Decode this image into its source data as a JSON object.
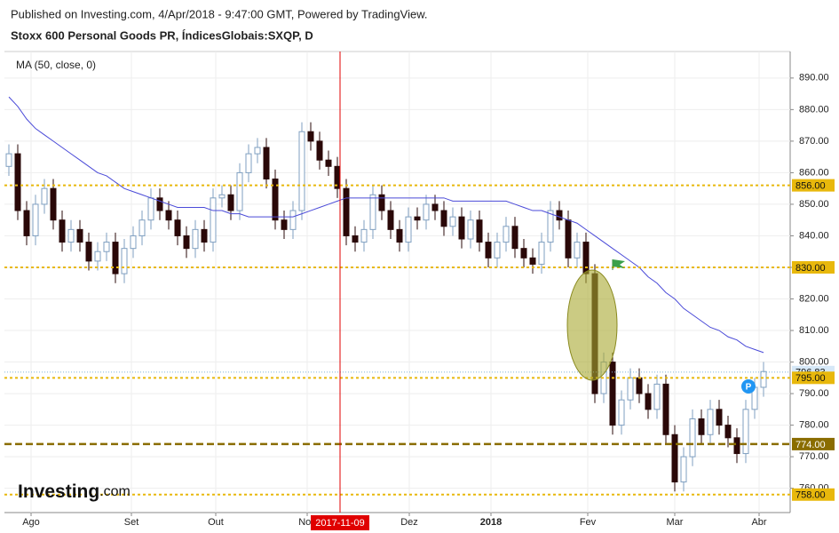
{
  "header": {
    "published": "Published on Investing.com, 4/Apr/2018 - 9:47:00 GMT, Powered by TradingView.",
    "symbol": "Stoxx 600 Personal Goods PR, ÍndicesGlobais:SXQP, D",
    "indicator": "MA (50, close, 0)"
  },
  "logo": {
    "brand": "Investing",
    "suffix": ".com"
  },
  "chart_data": {
    "type": "candlestick",
    "up_color": "#ffffff",
    "up_stroke": "#7f9fc0",
    "down_color": "#2a0808",
    "ma_color": "#4a4ad8",
    "open": [
      862,
      866,
      848,
      840,
      850,
      855,
      845,
      838,
      842,
      838,
      832,
      835,
      838,
      828,
      836,
      840,
      845,
      852,
      848,
      845,
      840,
      836,
      842,
      838,
      852,
      853,
      848,
      860,
      866,
      868,
      858,
      845,
      842,
      848,
      873,
      870,
      864,
      862,
      855,
      840,
      838,
      842,
      853,
      848,
      842,
      838,
      846,
      845,
      850,
      848,
      843,
      846,
      839,
      845,
      838,
      833,
      838,
      843,
      836,
      833,
      831,
      838,
      848,
      845,
      833,
      838,
      828,
      790,
      800,
      780,
      788,
      795,
      790,
      785,
      793,
      777,
      762,
      770,
      782,
      777,
      785,
      780,
      776,
      771,
      785,
      792
    ],
    "high": [
      869,
      869,
      851,
      853,
      858,
      858,
      848,
      845,
      845,
      841,
      838,
      841,
      841,
      839,
      843,
      848,
      855,
      855,
      851,
      848,
      843,
      845,
      845,
      855,
      856,
      856,
      863,
      869,
      871,
      871,
      861,
      848,
      851,
      876,
      876,
      873,
      867,
      865,
      858,
      843,
      845,
      856,
      856,
      851,
      845,
      849,
      849,
      853,
      853,
      851,
      849,
      849,
      848,
      848,
      841,
      841,
      846,
      846,
      839,
      836,
      841,
      851,
      851,
      848,
      841,
      841,
      831,
      803,
      803,
      791,
      798,
      798,
      793,
      796,
      796,
      780,
      773,
      785,
      785,
      788,
      788,
      783,
      779,
      788,
      795,
      800
    ],
    "low": [
      859,
      845,
      837,
      837,
      847,
      842,
      835,
      835,
      835,
      829,
      829,
      832,
      825,
      825,
      833,
      837,
      842,
      845,
      842,
      837,
      833,
      833,
      835,
      835,
      849,
      845,
      845,
      857,
      863,
      855,
      842,
      839,
      839,
      845,
      867,
      861,
      859,
      852,
      837,
      835,
      835,
      839,
      845,
      839,
      835,
      835,
      842,
      842,
      845,
      840,
      840,
      836,
      836,
      835,
      830,
      830,
      835,
      833,
      830,
      828,
      828,
      835,
      842,
      830,
      830,
      825,
      787,
      787,
      777,
      777,
      785,
      787,
      782,
      782,
      774,
      759,
      759,
      767,
      774,
      774,
      777,
      773,
      768,
      768,
      782,
      789
    ],
    "close": [
      866,
      848,
      840,
      850,
      855,
      845,
      838,
      842,
      838,
      832,
      835,
      838,
      828,
      836,
      840,
      845,
      852,
      848,
      845,
      840,
      836,
      842,
      838,
      852,
      853,
      848,
      860,
      866,
      868,
      858,
      845,
      842,
      848,
      873,
      870,
      864,
      862,
      855,
      840,
      838,
      842,
      853,
      848,
      842,
      838,
      846,
      845,
      850,
      848,
      843,
      846,
      839,
      845,
      838,
      833,
      838,
      843,
      836,
      833,
      831,
      838,
      848,
      845,
      833,
      838,
      828,
      790,
      800,
      780,
      788,
      795,
      790,
      785,
      793,
      777,
      762,
      770,
      782,
      777,
      785,
      780,
      776,
      771,
      785,
      792,
      797
    ],
    "ma": [
      884,
      881,
      877,
      874,
      872,
      870,
      868,
      866,
      864,
      862,
      860,
      859,
      857,
      855,
      854,
      853,
      852,
      851,
      850,
      849,
      849,
      849,
      849,
      848,
      848,
      847,
      847,
      846,
      846,
      846,
      846,
      846,
      846,
      847,
      848,
      849,
      850,
      851,
      852,
      852,
      852,
      852,
      852,
      852,
      852,
      852,
      852,
      852,
      852,
      852,
      851,
      851,
      851,
      851,
      851,
      851,
      851,
      850,
      849,
      848,
      848,
      847,
      846,
      845,
      844,
      842,
      840,
      838,
      836,
      834,
      832,
      830,
      827,
      825,
      822,
      820,
      817,
      815,
      813,
      811,
      810,
      808,
      807,
      805,
      804,
      803
    ],
    "ylim": [
      752.3,
      898.4
    ],
    "yticks": [
      {
        "value": 760,
        "label": "760.00"
      },
      {
        "value": 770,
        "label": "770.00"
      },
      {
        "value": 780,
        "label": "780.00"
      },
      {
        "value": 790,
        "label": "790.00"
      },
      {
        "value": 800,
        "label": "800.00"
      },
      {
        "value": 810,
        "label": "810.00"
      },
      {
        "value": 820,
        "label": "820.00"
      },
      {
        "value": 830,
        "label": "830.00"
      },
      {
        "value": 840,
        "label": "840.00"
      },
      {
        "value": 850,
        "label": "850.00"
      },
      {
        "value": 860,
        "label": "860.00"
      },
      {
        "value": 870,
        "label": "870.00"
      },
      {
        "value": 880,
        "label": "880.00"
      },
      {
        "value": 890,
        "label": "890.00"
      }
    ],
    "xticks": [
      {
        "value": 2.5,
        "label": "Ago"
      },
      {
        "value": 13.8,
        "label": "Set"
      },
      {
        "value": 23.3,
        "label": "Out"
      },
      {
        "value": 33.6,
        "label": "Nov"
      },
      {
        "value": 45.1,
        "label": "Dez"
      },
      {
        "value": 54.3,
        "label": "2018"
      },
      {
        "value": 65.2,
        "label": "Fev"
      },
      {
        "value": 75,
        "label": "Mar"
      },
      {
        "value": 84.5,
        "label": "Abr"
      }
    ],
    "levels": [
      {
        "value": 856,
        "label": "856.00",
        "color": "#e8b80c",
        "style": "dotted"
      },
      {
        "value": 830,
        "label": "830.00",
        "color": "#e8b80c",
        "style": "dotted"
      },
      {
        "value": 796.83,
        "label": "796.83",
        "color": "#7fb0d8",
        "style": "price"
      },
      {
        "value": 795,
        "label": "795.00",
        "color": "#e8b80c",
        "style": "dotted"
      },
      {
        "value": 774,
        "label": "774.00",
        "color": "#8a6d00",
        "style": "dashed"
      },
      {
        "value": 758,
        "label": "758.00",
        "color": "#e8b80c",
        "style": "dotted"
      }
    ],
    "cursor": {
      "value": 37.3,
      "label": "2017-11-09",
      "color": "#e00000"
    },
    "grid": true
  }
}
